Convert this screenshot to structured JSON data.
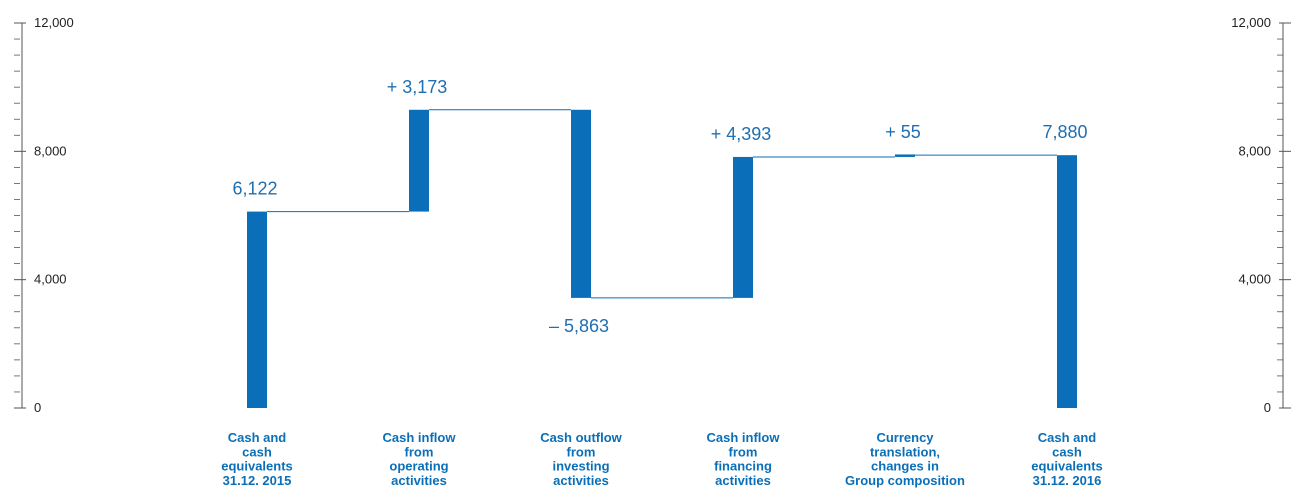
{
  "chart_data": {
    "type": "waterfall",
    "ylim": [
      0,
      12000
    ],
    "yticks": [
      0,
      4000,
      8000,
      12000
    ],
    "ytick_labels": [
      "0",
      "4,000",
      "8,000",
      "12,000"
    ],
    "grid": false,
    "colors": {
      "bar": "#0a6fb8",
      "label": "#1f6fb2",
      "axis": "#555555"
    },
    "steps": [
      {
        "category": [
          "Cash and",
          "cash",
          "equivalents",
          "31.12. 2015"
        ],
        "kind": "total",
        "value": 6122,
        "label": "6,122",
        "label_pos": "above"
      },
      {
        "category": [
          "Cash inflow",
          "from",
          "operating",
          "activities"
        ],
        "kind": "delta",
        "value": 3173,
        "label": "+ 3,173",
        "label_pos": "above"
      },
      {
        "category": [
          "Cash outflow",
          "from",
          "investing",
          "activities"
        ],
        "kind": "delta",
        "value": -5863,
        "label": "– 5,863",
        "label_pos": "below"
      },
      {
        "category": [
          "Cash inflow",
          "from",
          "financing",
          "activities"
        ],
        "kind": "delta",
        "value": 4393,
        "label": "+ 4,393",
        "label_pos": "above"
      },
      {
        "category": [
          "Currency",
          "translation,",
          "changes in",
          "Group composition"
        ],
        "kind": "delta",
        "value": 55,
        "label": "+ 55",
        "label_pos": "above"
      },
      {
        "category": [
          "Cash and",
          "cash",
          "equivalents",
          "31.12. 2016"
        ],
        "kind": "total",
        "value": 7880,
        "label": "7,880",
        "label_pos": "above"
      }
    ]
  }
}
